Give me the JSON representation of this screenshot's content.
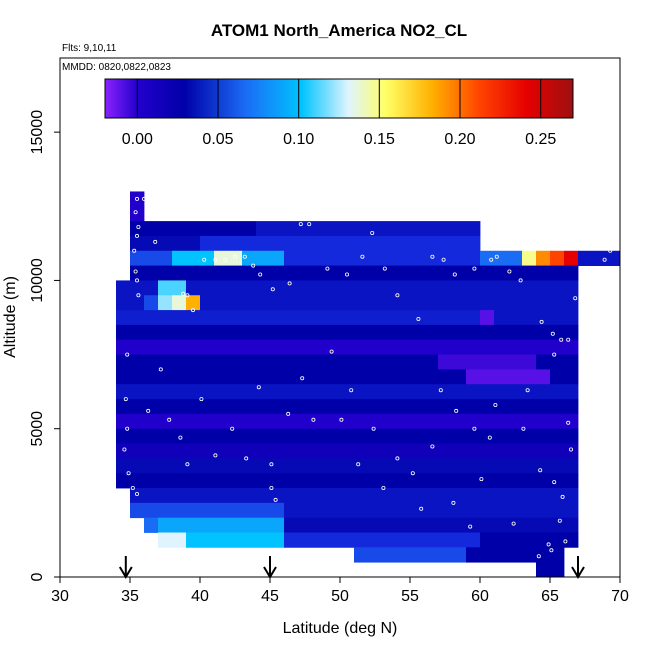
{
  "chart_data": {
    "type": "heatmap",
    "title": "ATOM1 North_America NO2_CL",
    "flights_label": "Flts: 9,10,11",
    "dates_label": "MMDD: 0820,0822,0823",
    "xlabel": "Latitude (deg N)",
    "ylabel": "Altitude (m)",
    "xlim": [
      30,
      70
    ],
    "ylim": [
      0,
      17500
    ],
    "x_ticks": [
      30,
      35,
      40,
      45,
      50,
      55,
      60,
      65,
      70
    ],
    "y_ticks": [
      0,
      5000,
      10000,
      15000
    ],
    "colorbar": {
      "tick_values": [
        0.0,
        0.05,
        0.1,
        0.15,
        0.2,
        0.25
      ],
      "tick_labels": [
        "0.00",
        "0.05",
        "0.10",
        "0.15",
        "0.20",
        "0.25"
      ],
      "range": [
        -0.02,
        0.27
      ]
    },
    "arrow_latitudes": [
      34.7,
      45.0,
      67.0
    ],
    "cell_size": {
      "lat": 1.0,
      "alt_m": 500
    },
    "grid": [
      {
        "alt": 12750,
        "lat_from": 35,
        "lat_to": 36,
        "value": 0.0
      },
      {
        "alt": 12250,
        "lat_from": 35,
        "lat_to": 36,
        "value": 0.0
      },
      {
        "alt": 11750,
        "lat_from": 35,
        "lat_to": 44,
        "value": 0.01
      },
      {
        "alt": 11750,
        "lat_from": 44,
        "lat_to": 60,
        "value": 0.02
      },
      {
        "alt": 11250,
        "lat_from": 35,
        "lat_to": 40,
        "value": 0.015
      },
      {
        "alt": 11250,
        "lat_from": 40,
        "lat_to": 60,
        "value": 0.03
      },
      {
        "alt": 10750,
        "lat_from": 35,
        "lat_to": 38,
        "value": 0.04
      },
      {
        "alt": 10750,
        "lat_from": 38,
        "lat_to": 41,
        "value": 0.08
      },
      {
        "alt": 10750,
        "lat_from": 41,
        "lat_to": 43,
        "value": 0.12
      },
      {
        "alt": 10750,
        "lat_from": 43,
        "lat_to": 46,
        "value": 0.07
      },
      {
        "alt": 10750,
        "lat_from": 46,
        "lat_to": 60,
        "value": 0.03
      },
      {
        "alt": 10750,
        "lat_from": 60,
        "lat_to": 63,
        "value": 0.05
      },
      {
        "alt": 10750,
        "lat_from": 63,
        "lat_to": 64,
        "value": 0.14
      },
      {
        "alt": 10750,
        "lat_from": 64,
        "lat_to": 65,
        "value": 0.19
      },
      {
        "alt": 10750,
        "lat_from": 65,
        "lat_to": 66,
        "value": 0.21
      },
      {
        "alt": 10750,
        "lat_from": 66,
        "lat_to": 67,
        "value": 0.24
      },
      {
        "alt": 10750,
        "lat_from": 67,
        "lat_to": 70,
        "value": 0.02
      },
      {
        "alt": 10250,
        "lat_from": 35,
        "lat_to": 67,
        "value": 0.01
      },
      {
        "alt": 9750,
        "lat_from": 34,
        "lat_to": 37,
        "value": 0.02
      },
      {
        "alt": 9750,
        "lat_from": 37,
        "lat_to": 39,
        "value": 0.09
      },
      {
        "alt": 9750,
        "lat_from": 39,
        "lat_to": 67,
        "value": 0.02
      },
      {
        "alt": 9250,
        "lat_from": 34,
        "lat_to": 36,
        "value": 0.02
      },
      {
        "alt": 9250,
        "lat_from": 36,
        "lat_to": 37,
        "value": 0.04
      },
      {
        "alt": 9250,
        "lat_from": 37,
        "lat_to": 38,
        "value": 0.1
      },
      {
        "alt": 9250,
        "lat_from": 38,
        "lat_to": 39,
        "value": 0.12
      },
      {
        "alt": 9250,
        "lat_from": 39,
        "lat_to": 40,
        "value": 0.18
      },
      {
        "alt": 9250,
        "lat_from": 40,
        "lat_to": 67,
        "value": 0.02
      },
      {
        "alt": 8750,
        "lat_from": 34,
        "lat_to": 60,
        "value": 0.025
      },
      {
        "alt": 8750,
        "lat_from": 60,
        "lat_to": 61,
        "value": -0.01
      },
      {
        "alt": 8750,
        "lat_from": 61,
        "lat_to": 67,
        "value": 0.02
      },
      {
        "alt": 8250,
        "lat_from": 34,
        "lat_to": 67,
        "value": 0.01
      },
      {
        "alt": 7750,
        "lat_from": 34,
        "lat_to": 67,
        "value": 0.0
      },
      {
        "alt": 7250,
        "lat_from": 34,
        "lat_to": 57,
        "value": 0.01
      },
      {
        "alt": 7250,
        "lat_from": 57,
        "lat_to": 64,
        "value": -0.005
      },
      {
        "alt": 7250,
        "lat_from": 64,
        "lat_to": 67,
        "value": 0.01
      },
      {
        "alt": 6750,
        "lat_from": 34,
        "lat_to": 59,
        "value": 0.01
      },
      {
        "alt": 6750,
        "lat_from": 59,
        "lat_to": 65,
        "value": -0.01
      },
      {
        "alt": 6750,
        "lat_from": 65,
        "lat_to": 67,
        "value": 0.01
      },
      {
        "alt": 6250,
        "lat_from": 34,
        "lat_to": 67,
        "value": 0.02
      },
      {
        "alt": 5750,
        "lat_from": 34,
        "lat_to": 67,
        "value": 0.01
      },
      {
        "alt": 5250,
        "lat_from": 34,
        "lat_to": 67,
        "value": 0.0
      },
      {
        "alt": 4750,
        "lat_from": 34,
        "lat_to": 67,
        "value": 0.01
      },
      {
        "alt": 4250,
        "lat_from": 34,
        "lat_to": 67,
        "value": 0.005
      },
      {
        "alt": 3750,
        "lat_from": 34,
        "lat_to": 67,
        "value": 0.015
      },
      {
        "alt": 3250,
        "lat_from": 34,
        "lat_to": 67,
        "value": 0.01
      },
      {
        "alt": 2750,
        "lat_from": 35,
        "lat_to": 67,
        "value": 0.02
      },
      {
        "alt": 2250,
        "lat_from": 35,
        "lat_to": 46,
        "value": 0.04
      },
      {
        "alt": 2250,
        "lat_from": 46,
        "lat_to": 67,
        "value": 0.02
      },
      {
        "alt": 1750,
        "lat_from": 36,
        "lat_to": 37,
        "value": 0.05
      },
      {
        "alt": 1750,
        "lat_from": 37,
        "lat_to": 46,
        "value": 0.07
      },
      {
        "alt": 1750,
        "lat_from": 46,
        "lat_to": 67,
        "value": 0.015
      },
      {
        "alt": 1250,
        "lat_from": 37,
        "lat_to": 39,
        "value": 0.11
      },
      {
        "alt": 1250,
        "lat_from": 39,
        "lat_to": 46,
        "value": 0.08
      },
      {
        "alt": 1250,
        "lat_from": 46,
        "lat_to": 60,
        "value": 0.03
      },
      {
        "alt": 1250,
        "lat_from": 60,
        "lat_to": 67,
        "value": 0.01
      },
      {
        "alt": 750,
        "lat_from": 51,
        "lat_to": 59,
        "value": 0.04
      },
      {
        "alt": 750,
        "lat_from": 59,
        "lat_to": 66,
        "value": 0.01
      },
      {
        "alt": 250,
        "lat_from": 64,
        "lat_to": 66,
        "value": 0.01
      }
    ],
    "sample_points": [
      [
        35.5,
        12750
      ],
      [
        36,
        12750
      ],
      [
        36.5,
        12700
      ],
      [
        35.4,
        12300
      ],
      [
        35.6,
        11800
      ],
      [
        35.5,
        11500
      ],
      [
        35.3,
        11000
      ],
      [
        35.4,
        10300
      ],
      [
        35.5,
        10000
      ],
      [
        35.6,
        9500
      ],
      [
        36.8,
        11300
      ],
      [
        36.9,
        12100
      ],
      [
        37.1,
        12150
      ],
      [
        38.8,
        9550
      ],
      [
        39.1,
        9500
      ],
      [
        39.5,
        9000
      ],
      [
        40.3,
        10700
      ],
      [
        41.1,
        10700
      ],
      [
        41.8,
        10700
      ],
      [
        42.5,
        10800
      ],
      [
        43.2,
        10800
      ],
      [
        43.8,
        10500
      ],
      [
        44.3,
        10200
      ],
      [
        45.2,
        9700
      ],
      [
        46.4,
        9900
      ],
      [
        47.2,
        11900
      ],
      [
        47.8,
        11900
      ],
      [
        49.1,
        10400
      ],
      [
        50.5,
        10200
      ],
      [
        51.6,
        10800
      ],
      [
        52.3,
        11600
      ],
      [
        53.2,
        10400
      ],
      [
        54.1,
        9500
      ],
      [
        55.6,
        8700
      ],
      [
        56.6,
        10800
      ],
      [
        57.4,
        10700
      ],
      [
        58.2,
        10200
      ],
      [
        59.6,
        10400
      ],
      [
        60.8,
        10700
      ],
      [
        61.2,
        10800
      ],
      [
        62.1,
        10300
      ],
      [
        62.9,
        10000
      ],
      [
        64.4,
        8600
      ],
      [
        65.2,
        8200
      ],
      [
        65.8,
        8000
      ],
      [
        66.3,
        8000
      ],
      [
        68.9,
        10700
      ],
      [
        69.3,
        11000
      ],
      [
        69.9,
        11300
      ],
      [
        34.8,
        7500
      ],
      [
        34.7,
        6000
      ],
      [
        34.8,
        5000
      ],
      [
        34.6,
        4300
      ],
      [
        34.9,
        3500
      ],
      [
        35.2,
        3000
      ],
      [
        35.5,
        2800
      ],
      [
        36.3,
        5600
      ],
      [
        37.2,
        7000
      ],
      [
        37.8,
        5300
      ],
      [
        38.6,
        4700
      ],
      [
        39.1,
        3800
      ],
      [
        40.1,
        6000
      ],
      [
        41.1,
        4100
      ],
      [
        42.3,
        5000
      ],
      [
        43.3,
        4000
      ],
      [
        44.2,
        6400
      ],
      [
        45.1,
        3800
      ],
      [
        45.1,
        3000
      ],
      [
        45.4,
        2600
      ],
      [
        46.3,
        5500
      ],
      [
        47.3,
        6700
      ],
      [
        48.1,
        5300
      ],
      [
        49.4,
        7600
      ],
      [
        50.1,
        5300
      ],
      [
        50.8,
        6300
      ],
      [
        51.3,
        3800
      ],
      [
        52.4,
        5000
      ],
      [
        53.1,
        3000
      ],
      [
        54.1,
        4000
      ],
      [
        55.2,
        3500
      ],
      [
        55.8,
        2300
      ],
      [
        56.6,
        4400
      ],
      [
        57.2,
        6300
      ],
      [
        58.1,
        2500
      ],
      [
        58.3,
        5600
      ],
      [
        59.3,
        1700
      ],
      [
        59.6,
        5000
      ],
      [
        60.1,
        3300
      ],
      [
        60.7,
        4700
      ],
      [
        61.1,
        5800
      ],
      [
        62.4,
        1800
      ],
      [
        63.1,
        5000
      ],
      [
        63.4,
        6300
      ],
      [
        64.3,
        3600
      ],
      [
        65.3,
        3200
      ],
      [
        65.7,
        1900
      ],
      [
        65.9,
        2700
      ],
      [
        66.3,
        5200
      ],
      [
        66.5,
        4300
      ],
      [
        64.9,
        1100
      ],
      [
        65.1,
        900
      ],
      [
        64.2,
        700
      ],
      [
        66.1,
        1200
      ],
      [
        65.3,
        7500
      ],
      [
        66.8,
        9400
      ]
    ]
  }
}
